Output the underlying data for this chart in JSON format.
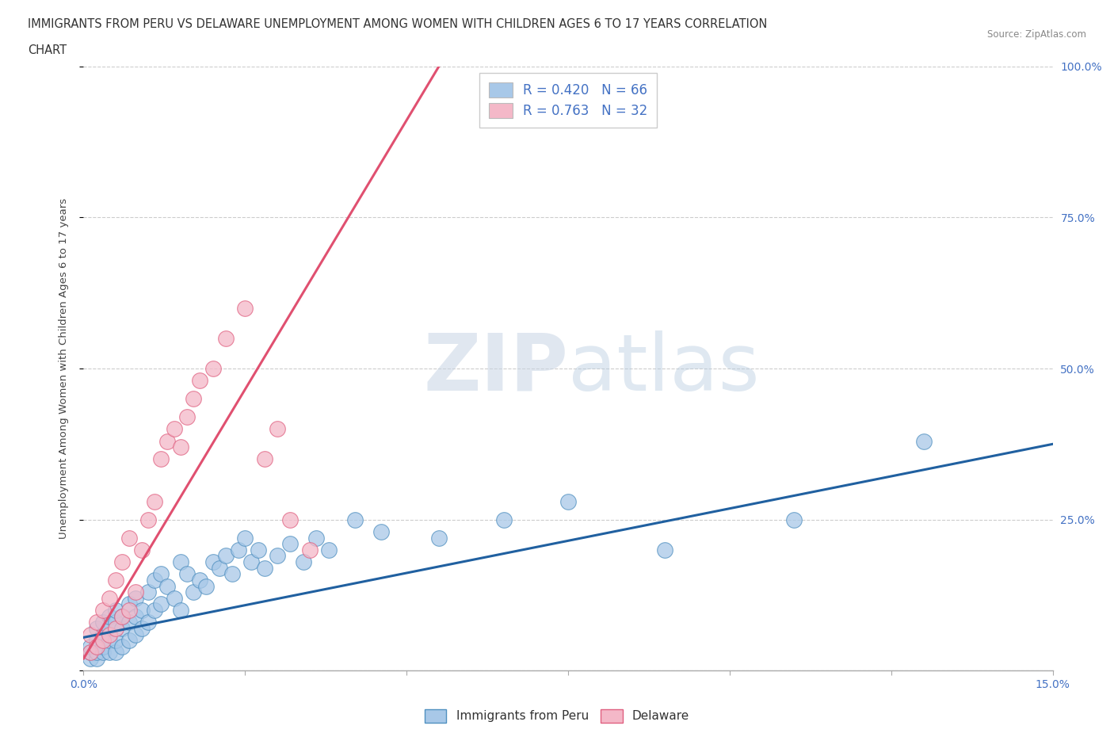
{
  "title_line1": "IMMIGRANTS FROM PERU VS DELAWARE UNEMPLOYMENT AMONG WOMEN WITH CHILDREN AGES 6 TO 17 YEARS CORRELATION",
  "title_line2": "CHART",
  "source": "Source: ZipAtlas.com",
  "ylabel": "Unemployment Among Women with Children Ages 6 to 17 years",
  "xlim": [
    0.0,
    0.15
  ],
  "ylim": [
    0.0,
    1.0
  ],
  "xticks": [
    0.0,
    0.025,
    0.05,
    0.075,
    0.1,
    0.125,
    0.15
  ],
  "xtick_labels": [
    "0.0%",
    "",
    "",
    "",
    "",
    "",
    "15.0%"
  ],
  "yticks": [
    0.0,
    0.25,
    0.5,
    0.75,
    1.0
  ],
  "ytick_labels": [
    "",
    "25.0%",
    "50.0%",
    "75.0%",
    "100.0%"
  ],
  "blue_color": "#a8c8e8",
  "pink_color": "#f4b8c8",
  "blue_edge": "#5090c0",
  "pink_edge": "#e06080",
  "trend_blue": "#2060a0",
  "trend_pink": "#e05070",
  "legend_R_blue": "R = 0.420",
  "legend_N_blue": "N = 66",
  "legend_R_pink": "R = 0.763",
  "legend_N_pink": "N = 32",
  "watermark_zip": "ZIP",
  "watermark_atlas": "atlas",
  "blue_trend_x0": 0.0,
  "blue_trend_y0": 0.055,
  "blue_trend_x1": 0.15,
  "blue_trend_y1": 0.375,
  "pink_trend_x0": 0.0,
  "pink_trend_y0": 0.02,
  "pink_trend_x1": 0.055,
  "pink_trend_y1": 1.0,
  "blue_x": [
    0.001,
    0.001,
    0.001,
    0.002,
    0.002,
    0.002,
    0.002,
    0.003,
    0.003,
    0.003,
    0.003,
    0.004,
    0.004,
    0.004,
    0.004,
    0.005,
    0.005,
    0.005,
    0.005,
    0.006,
    0.006,
    0.006,
    0.007,
    0.007,
    0.007,
    0.008,
    0.008,
    0.008,
    0.009,
    0.009,
    0.01,
    0.01,
    0.011,
    0.011,
    0.012,
    0.012,
    0.013,
    0.014,
    0.015,
    0.015,
    0.016,
    0.017,
    0.018,
    0.019,
    0.02,
    0.021,
    0.022,
    0.023,
    0.024,
    0.025,
    0.026,
    0.027,
    0.028,
    0.03,
    0.032,
    0.034,
    0.036,
    0.038,
    0.042,
    0.046,
    0.055,
    0.065,
    0.075,
    0.09,
    0.11,
    0.13
  ],
  "blue_y": [
    0.02,
    0.03,
    0.04,
    0.02,
    0.03,
    0.05,
    0.07,
    0.03,
    0.04,
    0.06,
    0.08,
    0.03,
    0.05,
    0.07,
    0.09,
    0.03,
    0.05,
    0.08,
    0.1,
    0.04,
    0.07,
    0.09,
    0.05,
    0.08,
    0.11,
    0.06,
    0.09,
    0.12,
    0.07,
    0.1,
    0.08,
    0.13,
    0.1,
    0.15,
    0.11,
    0.16,
    0.14,
    0.12,
    0.1,
    0.18,
    0.16,
    0.13,
    0.15,
    0.14,
    0.18,
    0.17,
    0.19,
    0.16,
    0.2,
    0.22,
    0.18,
    0.2,
    0.17,
    0.19,
    0.21,
    0.18,
    0.22,
    0.2,
    0.25,
    0.23,
    0.22,
    0.25,
    0.28,
    0.2,
    0.25,
    0.38
  ],
  "pink_x": [
    0.001,
    0.001,
    0.002,
    0.002,
    0.003,
    0.003,
    0.004,
    0.004,
    0.005,
    0.005,
    0.006,
    0.006,
    0.007,
    0.007,
    0.008,
    0.009,
    0.01,
    0.011,
    0.012,
    0.013,
    0.014,
    0.015,
    0.016,
    0.017,
    0.018,
    0.02,
    0.022,
    0.025,
    0.028,
    0.03,
    0.032,
    0.035
  ],
  "pink_y": [
    0.03,
    0.06,
    0.04,
    0.08,
    0.05,
    0.1,
    0.06,
    0.12,
    0.07,
    0.15,
    0.09,
    0.18,
    0.1,
    0.22,
    0.13,
    0.2,
    0.25,
    0.28,
    0.35,
    0.38,
    0.4,
    0.37,
    0.42,
    0.45,
    0.48,
    0.5,
    0.55,
    0.6,
    0.35,
    0.4,
    0.25,
    0.2
  ]
}
